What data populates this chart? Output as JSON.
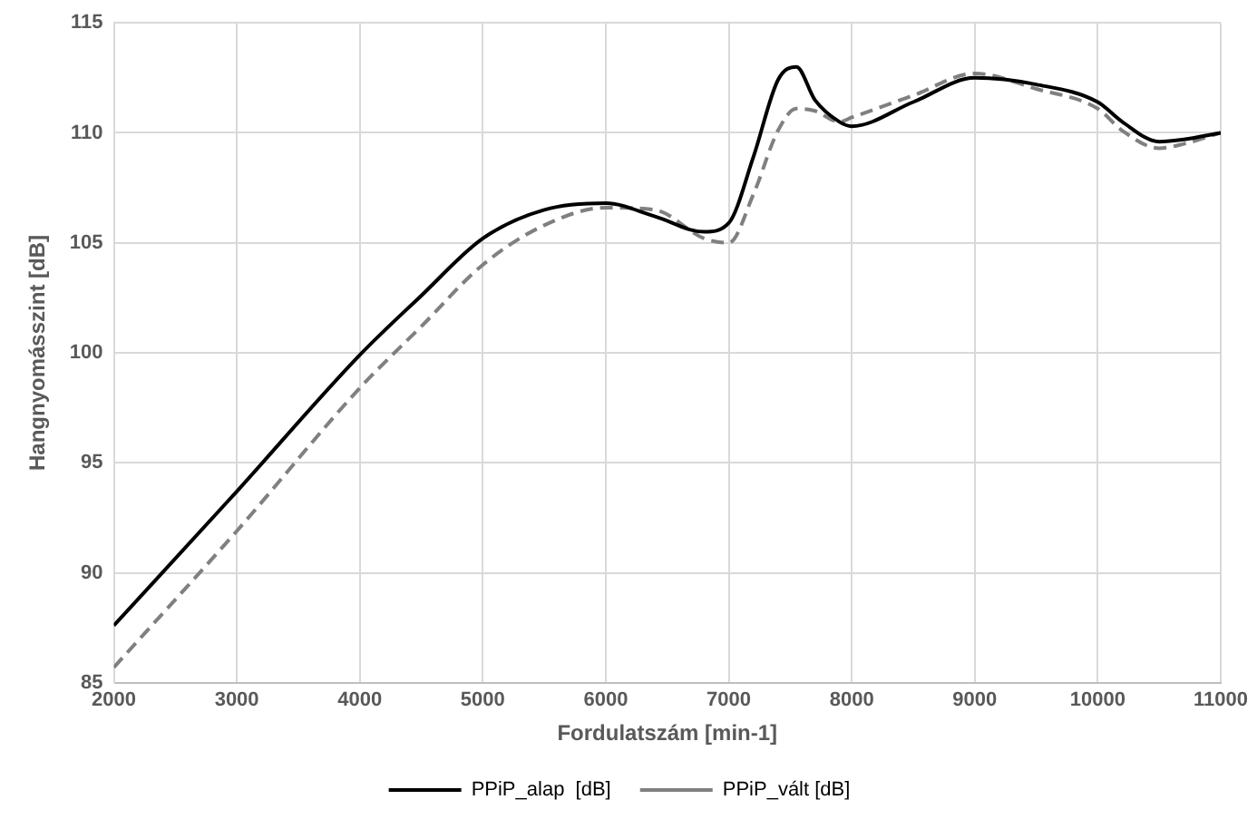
{
  "chart_data": {
    "type": "line",
    "xlabel": "Fordulatszám [min-1]",
    "ylabel": "Hangnyomásszint [dB]",
    "x": [
      2000,
      3000,
      4000,
      4500,
      5000,
      5500,
      6000,
      6400,
      6800,
      7000,
      7200,
      7400,
      7550,
      7700,
      7900,
      8000,
      8500,
      9000,
      9500,
      10000,
      10200,
      10500,
      10700,
      11000
    ],
    "series": [
      {
        "name": "PPiP_alap  [dB]",
        "color": "#000000",
        "line_style": "solid",
        "values": [
          87.6,
          93.7,
          99.9,
          102.6,
          105.2,
          106.5,
          106.8,
          106.2,
          105.5,
          105.9,
          108.9,
          112.4,
          113.0,
          111.5,
          110.5,
          110.3,
          111.4,
          112.5,
          112.2,
          111.4,
          110.5,
          109.6,
          109.7,
          110.0
        ]
      },
      {
        "name": "PPiP_vált [dB]",
        "color": "#808080",
        "line_style": "dashed",
        "values": [
          85.7,
          91.9,
          98.4,
          101.2,
          104.0,
          105.8,
          106.6,
          106.5,
          105.2,
          105.0,
          107.2,
          110.1,
          111.1,
          111.0,
          110.5,
          110.7,
          111.7,
          112.7,
          112.0,
          111.1,
          110.1,
          109.3,
          109.5,
          110.0
        ]
      }
    ],
    "xlim": [
      2000,
      11000
    ],
    "xticks": [
      2000,
      3000,
      4000,
      5000,
      6000,
      7000,
      8000,
      9000,
      10000,
      11000
    ],
    "ylim": [
      85,
      115
    ],
    "yticks": [
      85,
      90,
      95,
      100,
      105,
      110,
      115
    ],
    "grid": true,
    "legend": "bottom",
    "marker": "none"
  }
}
